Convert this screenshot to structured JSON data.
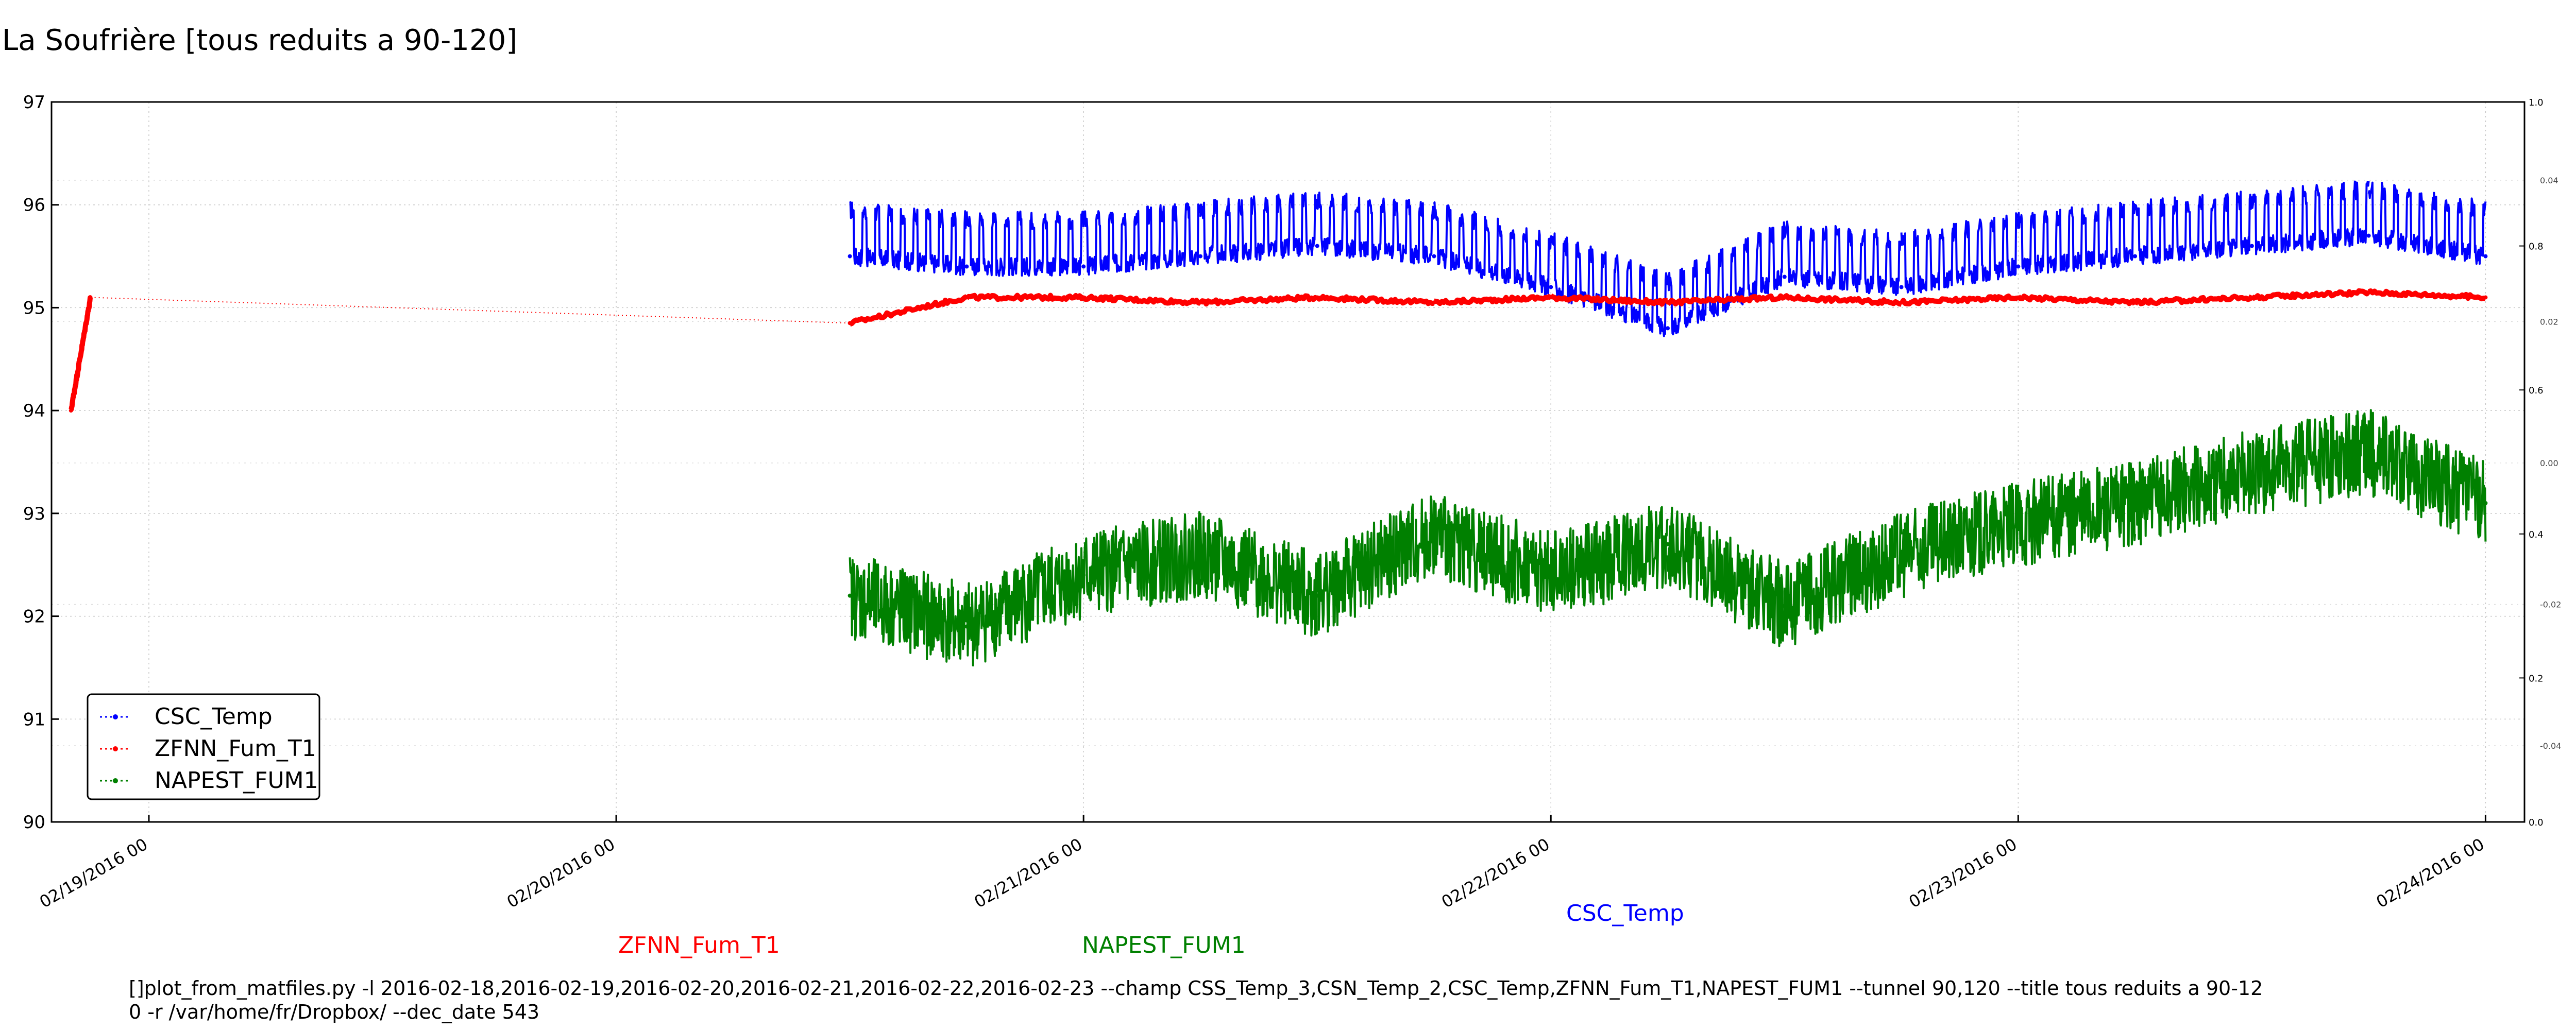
{
  "title": "La Soufrière [tous reduits a 90-120]",
  "command": {
    "line1": "[]plot_from_matfiles.py -l 2016-02-18,2016-02-19,2016-02-20,2016-02-21,2016-02-22,2016-02-23 --champ CSS_Temp_3,CSN_Temp_2,CSC_Temp,ZFNN_Fum_T1,NAPEST_FUM1 --tunnel 90,120 --title tous reduits a 90-12",
    "line2": "0 -r /var/home/fr/Dropbox/ --dec_date 543"
  },
  "series_labels": {
    "csc": "CSC_Temp",
    "zfnn": "ZFNN_Fum_T1",
    "napest": "NAPEST_FUM1"
  },
  "colors": {
    "csc": "#0000ff",
    "zfnn": "#ff0000",
    "napest": "#008000"
  },
  "chart_data": {
    "type": "line",
    "title": "La Soufrière [tous reduits a 90-120]",
    "ylim": [
      90,
      97
    ],
    "y_ticks": [
      "90",
      "91",
      "92",
      "93",
      "94",
      "95",
      "96",
      "97"
    ],
    "x_ticks": [
      "02/19/2016 00",
      "02/20/2016 00",
      "02/21/2016 00",
      "02/22/2016 00",
      "02/23/2016 00",
      "02/24/2016 00"
    ],
    "right_axis_ticks": [
      "0.0",
      "0.2",
      "0.4",
      "0.6",
      "0.8",
      "1.0"
    ],
    "right_axis_ticks_secondary": [
      "-0.04",
      "-0.02",
      "0.00",
      "0.02",
      "0.04"
    ],
    "grid": true,
    "legend_position": "bottom-left",
    "legend": [
      "CSC_Temp",
      "ZFNN_Fum_T1",
      "NAPEST_FUM1"
    ],
    "series": [
      {
        "name": "CSC_Temp",
        "color": "#0000ff",
        "x": [
          "02/20/2016 12:00",
          "02/20/2016 18:00",
          "02/21/2016 00:00",
          "02/21/2016 06:00",
          "02/21/2016 12:00",
          "02/21/2016 18:00",
          "02/22/2016 00:00",
          "02/22/2016 06:00",
          "02/22/2016 12:00",
          "02/22/2016 18:00",
          "02/23/2016 00:00",
          "02/23/2016 06:00",
          "02/23/2016 12:00",
          "02/23/2016 18:00",
          "02/24/2016 00:00"
        ],
        "y": [
          95.5,
          95.4,
          95.4,
          95.5,
          95.6,
          95.5,
          95.2,
          94.8,
          95.3,
          95.2,
          95.4,
          95.5,
          95.6,
          95.7,
          95.5
        ]
      },
      {
        "name": "ZFNN_Fum_T1",
        "color": "#ff0000",
        "x": [
          "02/18/2016 20:00",
          "02/18/2016 21:00",
          "02/20/2016 12:00",
          "02/20/2016 18:00",
          "02/21/2016 00:00",
          "02/21/2016 06:00",
          "02/21/2016 12:00",
          "02/21/2016 18:00",
          "02/22/2016 00:00",
          "02/22/2016 06:00",
          "02/22/2016 12:00",
          "02/22/2016 18:00",
          "02/23/2016 00:00",
          "02/23/2016 06:00",
          "02/23/2016 12:00",
          "02/23/2016 18:00",
          "02/24/2016 00:00"
        ],
        "y": [
          94.0,
          95.1,
          94.85,
          95.1,
          95.1,
          95.05,
          95.1,
          95.05,
          95.1,
          95.05,
          95.1,
          95.05,
          95.1,
          95.05,
          95.1,
          95.15,
          95.1
        ]
      },
      {
        "name": "NAPEST_FUM1",
        "color": "#008000",
        "x": [
          "02/20/2016 12:00",
          "02/20/2016 18:00",
          "02/21/2016 00:00",
          "02/21/2016 06:00",
          "02/21/2016 12:00",
          "02/21/2016 18:00",
          "02/22/2016 00:00",
          "02/22/2016 06:00",
          "02/22/2016 12:00",
          "02/22/2016 18:00",
          "02/23/2016 00:00",
          "02/23/2016 06:00",
          "02/23/2016 12:00",
          "02/23/2016 18:00",
          "02/24/2016 00:00"
        ],
        "y": [
          92.2,
          91.9,
          92.4,
          92.6,
          92.2,
          92.8,
          92.4,
          92.7,
          92.1,
          92.6,
          92.9,
          93.1,
          93.4,
          93.6,
          93.1
        ]
      }
    ]
  }
}
